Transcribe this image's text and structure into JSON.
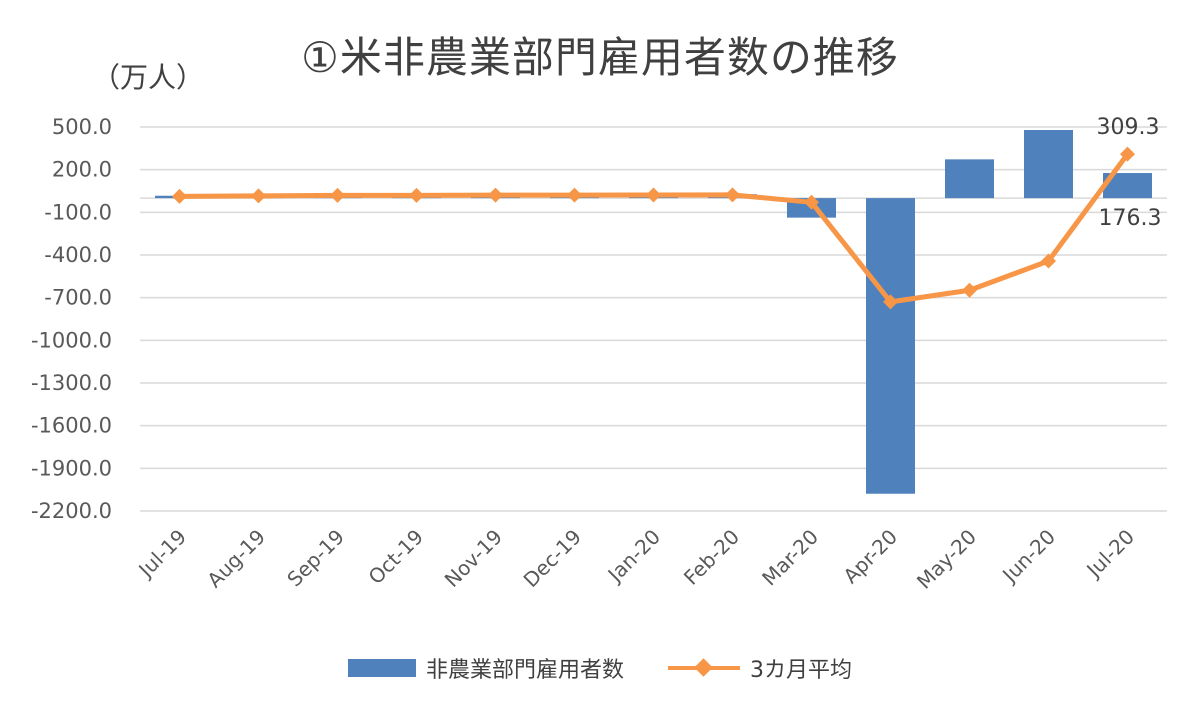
{
  "chart_data": {
    "type": "bar",
    "title": "①米非農業部門雇用者数の推移",
    "unit_label": "（万人）",
    "categories": [
      "Jul-19",
      "Aug-19",
      "Sep-19",
      "Oct-19",
      "Nov-19",
      "Dec-19",
      "Jan-20",
      "Feb-20",
      "Mar-20",
      "Apr-20",
      "May-20",
      "Jun-20",
      "Jul-20"
    ],
    "series": [
      {
        "name": "非農業部門雇用者数",
        "type": "bar",
        "color": "#4f81bd",
        "values": [
          16.6,
          21.9,
          18.0,
          18.5,
          26.6,
          18.4,
          21.4,
          27.5,
          -137.3,
          -2078.7,
          272.5,
          479.1,
          176.3
        ]
      },
      {
        "name": "3カ月平均",
        "type": "line",
        "color": "#f79646",
        "values": [
          12.0,
          16.0,
          18.8,
          19.5,
          21.0,
          21.2,
          22.0,
          22.5,
          -29.5,
          -729.5,
          -647.8,
          -442.4,
          309.3
        ]
      }
    ],
    "ylim": [
      -2200,
      500
    ],
    "yticks": [
      500,
      200,
      -100,
      -400,
      -700,
      -1000,
      -1300,
      -1600,
      -1900,
      -2200
    ],
    "ytick_labels": [
      "500.0",
      "200.0",
      "-100.0",
      "-400.0",
      "-700.0",
      "-1000.0",
      "-1300.0",
      "-1600.0",
      "-1900.0",
      "-2200.0"
    ],
    "data_labels": {
      "line_last": "309.3",
      "bar_last": "176.3"
    },
    "grid": true,
    "legend_position": "bottom"
  }
}
